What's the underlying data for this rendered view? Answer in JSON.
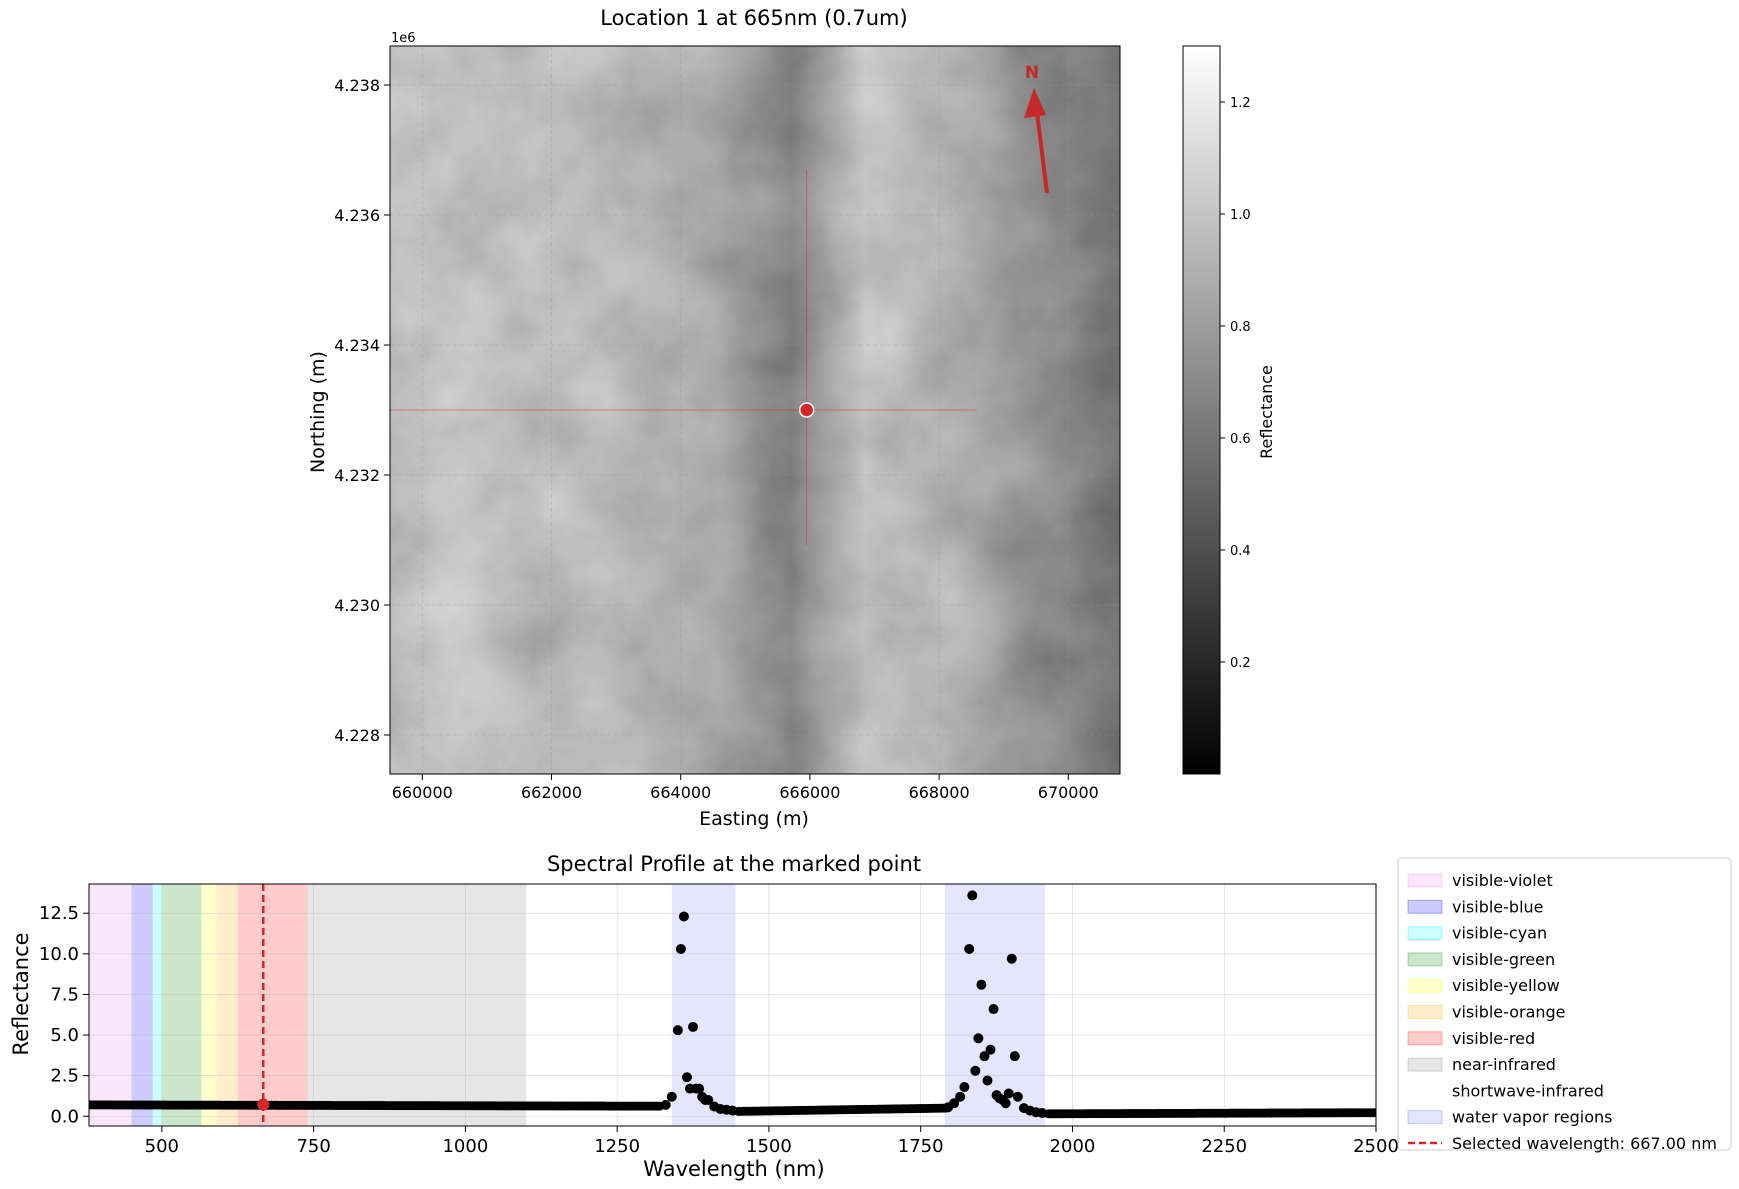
{
  "chart_data": [
    {
      "type": "heatmap",
      "title": "Location 1 at 665nm (0.7um)",
      "xlabel": "Easting (m)",
      "ylabel": "Northing (m)",
      "x_ticks": [
        "660000",
        "662000",
        "664000",
        "666000",
        "668000",
        "670000"
      ],
      "x_tick_values": [
        660000,
        662000,
        664000,
        666000,
        668000,
        670000
      ],
      "xlim": [
        659500,
        670800
      ],
      "y_ticks": [
        "4.228",
        "4.230",
        "4.232",
        "4.234",
        "4.236",
        "4.238"
      ],
      "y_tick_values": [
        4.228,
        4.23,
        4.232,
        4.234,
        4.236,
        4.238
      ],
      "ylim": [
        4.2274,
        4.2386
      ],
      "y_offset_label": "1e6",
      "marker": {
        "x": 665950,
        "y": 4.233
      },
      "north_arrow_label": "N",
      "colorbar": {
        "label": "Reflectance",
        "ticks": [
          "0.2",
          "0.4",
          "0.6",
          "0.8",
          "1.0",
          "1.2"
        ],
        "tick_values": [
          0.2,
          0.4,
          0.6,
          0.8,
          1.0,
          1.2
        ],
        "range": [
          0.0,
          1.3
        ],
        "colormap": "gray"
      },
      "grid": true
    },
    {
      "type": "scatter",
      "title": "Spectral Profile at the marked point",
      "xlabel": "Wavelength (nm)",
      "ylabel": "Reflectance",
      "xlim": [
        380,
        2500
      ],
      "ylim": [
        -0.6,
        14.3
      ],
      "x_ticks": [
        "500",
        "750",
        "1000",
        "1250",
        "1500",
        "1750",
        "2000",
        "2250",
        "2500"
      ],
      "x_tick_values": [
        500,
        750,
        1000,
        1250,
        1500,
        1750,
        2000,
        2250,
        2500
      ],
      "y_ticks": [
        "0.0",
        "2.5",
        "5.0",
        "7.5",
        "10.0",
        "12.5"
      ],
      "y_tick_values": [
        0.0,
        2.5,
        5.0,
        7.5,
        10.0,
        12.5
      ],
      "grid": true,
      "legend_position": "outside-right",
      "bands": [
        {
          "name": "visible-violet",
          "start": 380,
          "end": 450,
          "color": "#ee82ee",
          "alpha": 0.2
        },
        {
          "name": "visible-blue",
          "start": 450,
          "end": 485,
          "color": "#0000ff",
          "alpha": 0.2
        },
        {
          "name": "visible-cyan",
          "start": 485,
          "end": 500,
          "color": "#00ffff",
          "alpha": 0.2
        },
        {
          "name": "visible-green",
          "start": 500,
          "end": 565,
          "color": "#008000",
          "alpha": 0.2
        },
        {
          "name": "visible-yellow",
          "start": 565,
          "end": 590,
          "color": "#ffff00",
          "alpha": 0.2
        },
        {
          "name": "visible-orange",
          "start": 590,
          "end": 625,
          "color": "#ffa500",
          "alpha": 0.2
        },
        {
          "name": "visible-red",
          "start": 625,
          "end": 740,
          "color": "#ff0000",
          "alpha": 0.2
        },
        {
          "name": "near-infrared",
          "start": 740,
          "end": 1100,
          "color": "#808080",
          "alpha": 0.2
        },
        {
          "name": "shortwave-infrared",
          "start": 1100,
          "end": 2500,
          "color": "#ffffff",
          "alpha": 0.0
        },
        {
          "name": "water vapor regions",
          "start": 1340,
          "end": 1445,
          "color": "#0000ff",
          "alpha": 0.1
        },
        {
          "name": "water vapor regions",
          "start": 1790,
          "end": 1955,
          "color": "#0000ff",
          "alpha": 0.1
        }
      ],
      "legend": [
        {
          "label": "visible-violet",
          "color": "#ee82ee",
          "alpha": 0.2,
          "kind": "patch"
        },
        {
          "label": "visible-blue",
          "color": "#0000ff",
          "alpha": 0.2,
          "kind": "patch"
        },
        {
          "label": "visible-cyan",
          "color": "#00ffff",
          "alpha": 0.2,
          "kind": "patch"
        },
        {
          "label": "visible-green",
          "color": "#008000",
          "alpha": 0.2,
          "kind": "patch"
        },
        {
          "label": "visible-yellow",
          "color": "#ffff00",
          "alpha": 0.2,
          "kind": "patch"
        },
        {
          "label": "visible-orange",
          "color": "#ffa500",
          "alpha": 0.2,
          "kind": "patch"
        },
        {
          "label": "visible-red",
          "color": "#ff0000",
          "alpha": 0.2,
          "kind": "patch"
        },
        {
          "label": "near-infrared",
          "color": "#808080",
          "alpha": 0.2,
          "kind": "patch"
        },
        {
          "label": "shortwave-infrared",
          "color": "#ffffff",
          "alpha": 0.0,
          "kind": "patch"
        },
        {
          "label": "water vapor regions",
          "color": "#0000ff",
          "alpha": 0.1,
          "kind": "patch"
        },
        {
          "label": "Selected wavelength: 667.00 nm",
          "color": "#d62728",
          "alpha": 1,
          "kind": "dashed-line"
        }
      ],
      "selected_wavelength": 667,
      "selected_value": 0.72,
      "baseline_segments": [
        {
          "x": [
            380,
            1320
          ],
          "y": [
            0.7,
            0.62
          ],
          "note": "dense points"
        },
        {
          "x": [
            1450,
            1790
          ],
          "y": [
            0.3,
            0.5
          ]
        },
        {
          "x": [
            1960,
            2500
          ],
          "y": [
            0.15,
            0.22
          ]
        }
      ],
      "spike_points": [
        {
          "x": 1330,
          "y": 0.7
        },
        {
          "x": 1340,
          "y": 1.2
        },
        {
          "x": 1350,
          "y": 5.3
        },
        {
          "x": 1355,
          "y": 10.3
        },
        {
          "x": 1360,
          "y": 12.3
        },
        {
          "x": 1365,
          "y": 2.4
        },
        {
          "x": 1370,
          "y": 1.7
        },
        {
          "x": 1375,
          "y": 5.5
        },
        {
          "x": 1380,
          "y": 1.7
        },
        {
          "x": 1385,
          "y": 1.7
        },
        {
          "x": 1390,
          "y": 1.2
        },
        {
          "x": 1395,
          "y": 1.0
        },
        {
          "x": 1400,
          "y": 1.0
        },
        {
          "x": 1410,
          "y": 0.6
        },
        {
          "x": 1420,
          "y": 0.45
        },
        {
          "x": 1430,
          "y": 0.4
        },
        {
          "x": 1440,
          "y": 0.35
        },
        {
          "x": 1795,
          "y": 0.55
        },
        {
          "x": 1805,
          "y": 0.8
        },
        {
          "x": 1815,
          "y": 1.2
        },
        {
          "x": 1822,
          "y": 1.8
        },
        {
          "x": 1830,
          "y": 10.3
        },
        {
          "x": 1835,
          "y": 13.6
        },
        {
          "x": 1840,
          "y": 2.8
        },
        {
          "x": 1845,
          "y": 4.8
        },
        {
          "x": 1850,
          "y": 8.1
        },
        {
          "x": 1855,
          "y": 3.7
        },
        {
          "x": 1860,
          "y": 2.2
        },
        {
          "x": 1865,
          "y": 4.1
        },
        {
          "x": 1870,
          "y": 6.6
        },
        {
          "x": 1875,
          "y": 1.3
        },
        {
          "x": 1880,
          "y": 1.1
        },
        {
          "x": 1885,
          "y": 1.0
        },
        {
          "x": 1890,
          "y": 0.8
        },
        {
          "x": 1895,
          "y": 1.4
        },
        {
          "x": 1900,
          "y": 9.7
        },
        {
          "x": 1905,
          "y": 3.7
        },
        {
          "x": 1910,
          "y": 1.2
        },
        {
          "x": 1920,
          "y": 0.5
        },
        {
          "x": 1930,
          "y": 0.35
        },
        {
          "x": 1940,
          "y": 0.25
        },
        {
          "x": 1950,
          "y": 0.2
        }
      ]
    }
  ]
}
